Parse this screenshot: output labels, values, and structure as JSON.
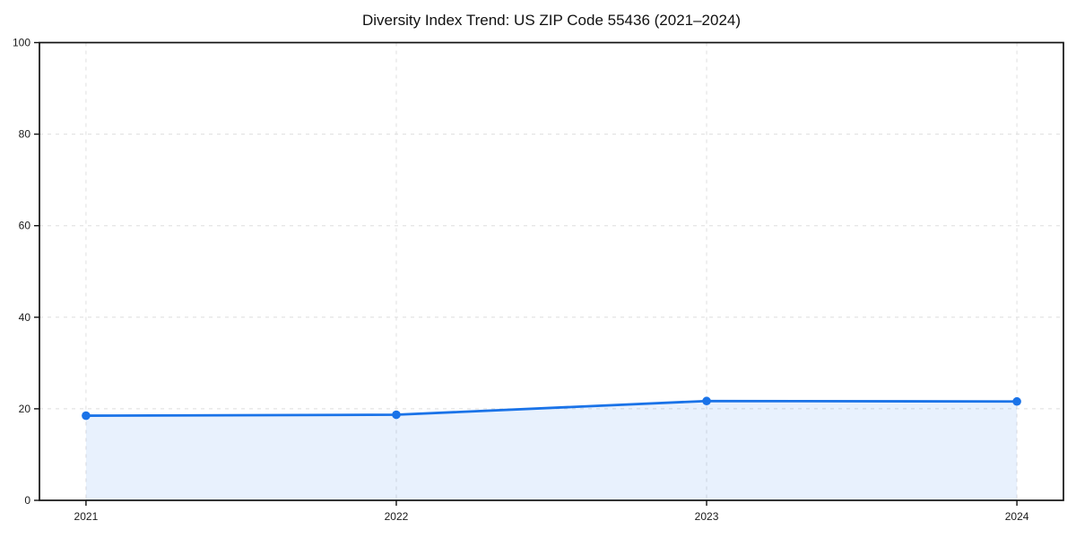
{
  "chart_data": {
    "type": "area",
    "title": "Diversity Index Trend: US ZIP Code 55436 (2021–2024)",
    "categories": [
      2021,
      2022,
      2023,
      2024
    ],
    "series": [
      {
        "name": "Diversity Index",
        "values": [
          18.5,
          18.7,
          21.7,
          21.6
        ]
      }
    ],
    "xlabel": "",
    "ylabel": "",
    "ylim": [
      0,
      100
    ],
    "y_ticks": [
      0,
      20,
      40,
      60,
      80,
      100
    ],
    "x_ticks": [
      "2021",
      "2022",
      "2023",
      "2024"
    ],
    "grid": true,
    "grid_style": "dashed",
    "legend_position": "none",
    "line_color": "#1a73e8",
    "marker_color": "#1a73e8",
    "fill_color": "#1a73e8",
    "fill_opacity": 0.1,
    "grid_color": "#dedede",
    "axis_color": "#111111",
    "tick_label_color": "#1a1a1a",
    "background_color": "#ffffff"
  }
}
